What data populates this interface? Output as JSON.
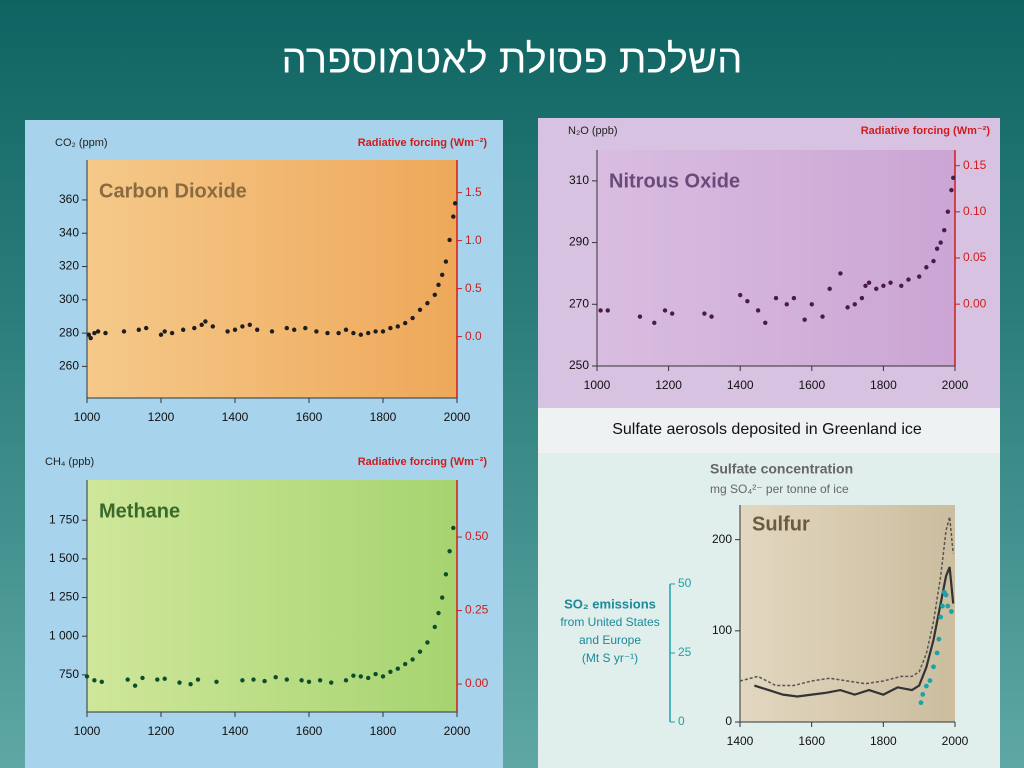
{
  "slide_title": "השלכת פסולת לאטמוספרה",
  "chart_data": [
    {
      "type": "scatter",
      "title": "Carbon Dioxide",
      "ylabel": "CO₂ (ppm)",
      "y2label": "Radiative forcing (Wm⁻²)",
      "color": "#1e1e1e",
      "x": [
        1005,
        1010,
        1020,
        1030,
        1050,
        1100,
        1140,
        1160,
        1200,
        1210,
        1230,
        1260,
        1290,
        1310,
        1320,
        1340,
        1380,
        1400,
        1420,
        1440,
        1460,
        1500,
        1540,
        1560,
        1590,
        1620,
        1650,
        1680,
        1700,
        1720,
        1740,
        1760,
        1780,
        1800,
        1820,
        1840,
        1860,
        1880,
        1900,
        1920,
        1940,
        1950,
        1960,
        1970,
        1980,
        1990,
        1995
      ],
      "values": [
        279,
        277,
        280,
        281,
        280,
        281,
        282,
        283,
        279,
        281,
        280,
        282,
        283,
        285,
        287,
        284,
        281,
        282,
        284,
        285,
        282,
        281,
        283,
        282,
        283,
        281,
        280,
        280,
        282,
        280,
        279,
        280,
        281,
        281,
        283,
        284,
        286,
        289,
        294,
        298,
        303,
        309,
        315,
        323,
        336,
        350,
        358
      ],
      "xlim": [
        1000,
        2000
      ],
      "xticks": [
        1000,
        1200,
        1400,
        1600,
        1800,
        2000
      ],
      "ylim": [
        241,
        384
      ],
      "yticks": [
        260,
        280,
        300,
        320,
        340,
        360
      ],
      "y2lim": [
        -0.64,
        1.84
      ],
      "y2ticks": [
        {
          "value": 0,
          "label": "0.0"
        },
        0.5,
        {
          "value": 1,
          "label": "1.0"
        },
        1.5
      ]
    },
    {
      "type": "scatter",
      "title": "Nitrous Oxide",
      "ylabel": "N₂O (ppb)",
      "y2label": "Radiative forcing (Wm⁻²)",
      "color": "#4a1a4a",
      "x": [
        1010,
        1030,
        1120,
        1160,
        1190,
        1210,
        1300,
        1320,
        1400,
        1420,
        1450,
        1470,
        1500,
        1530,
        1550,
        1580,
        1600,
        1630,
        1650,
        1680,
        1700,
        1720,
        1740,
        1750,
        1760,
        1780,
        1800,
        1820,
        1850,
        1870,
        1900,
        1920,
        1940,
        1950,
        1960,
        1970,
        1980,
        1990,
        1995
      ],
      "values": [
        268,
        268,
        266,
        264,
        268,
        267,
        267,
        266,
        273,
        271,
        268,
        264,
        272,
        270,
        272,
        265,
        270,
        266,
        275,
        280,
        269,
        270,
        272,
        276,
        277,
        275,
        276,
        277,
        276,
        278,
        279,
        282,
        284,
        288,
        290,
        294,
        300,
        307,
        311
      ],
      "xlim": [
        1000,
        2000
      ],
      "xticks": [
        1000,
        1200,
        1400,
        1600,
        1800,
        2000
      ],
      "ylim": [
        250,
        320
      ],
      "yticks": [
        250,
        270,
        290,
        310
      ],
      "y2lim": [
        -0.067,
        0.167
      ],
      "y2ticks": [
        {
          "value": 0,
          "label": "0.00"
        },
        {
          "value": 0.05,
          "label": "0.05"
        },
        {
          "value": 0.1,
          "label": "0.10"
        },
        {
          "value": 0.15,
          "label": "0.15"
        }
      ]
    },
    {
      "type": "scatter",
      "title": "Methane",
      "ylabel": "CH₄ (ppb)",
      "y2label": "Radiative forcing (Wm⁻²)",
      "color": "#0d4d2d",
      "x": [
        1000,
        1020,
        1040,
        1110,
        1130,
        1150,
        1190,
        1210,
        1250,
        1280,
        1300,
        1350,
        1420,
        1450,
        1480,
        1510,
        1540,
        1580,
        1600,
        1630,
        1660,
        1700,
        1720,
        1740,
        1760,
        1780,
        1800,
        1820,
        1840,
        1860,
        1880,
        1900,
        1920,
        1940,
        1950,
        1960,
        1970,
        1980,
        1990
      ],
      "values": [
        740,
        715,
        705,
        720,
        680,
        730,
        720,
        725,
        700,
        690,
        720,
        705,
        715,
        720,
        710,
        735,
        720,
        715,
        705,
        715,
        700,
        715,
        745,
        740,
        730,
        755,
        740,
        770,
        790,
        820,
        850,
        900,
        960,
        1060,
        1150,
        1250,
        1400,
        1550,
        1700
      ],
      "xlim": [
        1000,
        2000
      ],
      "xticks": [
        1000,
        1200,
        1400,
        1600,
        1800,
        2000
      ],
      "ylim": [
        510,
        2010
      ],
      "yticks": [
        {
          "value": 750,
          "label": "750"
        },
        {
          "value": 1000,
          "label": "1 000"
        },
        {
          "value": 1250,
          "label": "1 250"
        },
        {
          "value": 1500,
          "label": "1 500"
        },
        {
          "value": 1750,
          "label": "1 750"
        }
      ],
      "y2lim": [
        -0.095,
        0.694
      ],
      "y2ticks": [
        {
          "value": 0,
          "label": "0.00"
        },
        {
          "value": 0.25,
          "label": "0.25"
        },
        {
          "value": 0.5,
          "label": "0.50"
        }
      ]
    },
    {
      "type": "line",
      "heading": "Sulfate aerosols deposited in Greenland ice",
      "title": "Sulfur",
      "ylabel": "Sulfate concentration",
      "ylabel_sub": "mg SO₄²⁻ per tonne of ice",
      "y2label": "SO₂ emissions",
      "y2label_lines": [
        "from United States",
        "and Europe",
        "(Mt S yr⁻¹)"
      ],
      "series": [
        {
          "color": "#333333",
          "dash": false,
          "x": [
            1440,
            1480,
            1520,
            1560,
            1600,
            1640,
            1680,
            1720,
            1760,
            1800,
            1840,
            1880,
            1900,
            1920,
            1940,
            1960,
            1975,
            1985,
            1995
          ],
          "values": [
            40,
            35,
            30,
            28,
            30,
            32,
            35,
            30,
            35,
            30,
            38,
            35,
            40,
            60,
            90,
            130,
            160,
            170,
            130
          ]
        },
        {
          "color": "#555555",
          "dash": true,
          "x": [
            1400,
            1450,
            1500,
            1550,
            1600,
            1650,
            1700,
            1750,
            1800,
            1850,
            1880,
            1900,
            1920,
            1940,
            1960,
            1975,
            1985,
            1995
          ],
          "values": [
            45,
            50,
            40,
            40,
            45,
            48,
            45,
            42,
            45,
            50,
            50,
            55,
            75,
            110,
            160,
            210,
            225,
            185
          ]
        },
        {
          "color": "#1aa3a8",
          "points": true,
          "axis": "y2",
          "x": [
            1905,
            1910,
            1920,
            1930,
            1940,
            1950,
            1955,
            1960,
            1965,
            1970,
            1975,
            1980,
            1990
          ],
          "values": [
            7,
            10,
            13,
            15,
            20,
            25,
            30,
            38,
            42,
            47,
            46,
            42,
            40
          ]
        }
      ],
      "xlim": [
        1400,
        2000
      ],
      "xticks": [
        1400,
        1600,
        1800,
        2000
      ],
      "ylim": [
        0,
        238
      ],
      "yticks": [
        0,
        100,
        200
      ],
      "y2lim": [
        0,
        78.6
      ],
      "y2ticks": [
        0,
        25,
        50
      ]
    }
  ]
}
